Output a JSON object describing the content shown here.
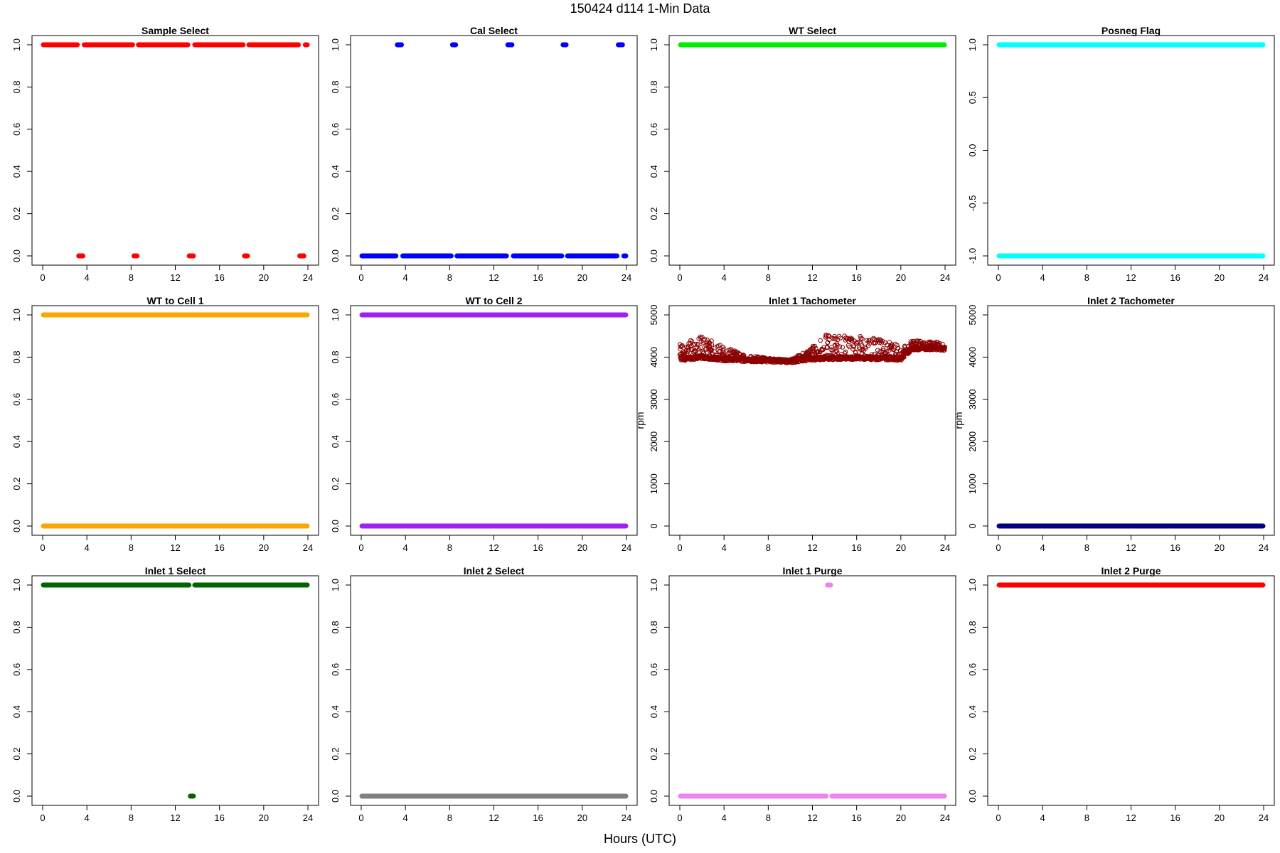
{
  "title": "150424   d114   1-Min Data",
  "xlabel": "Hours (UTC)",
  "chart_data": [
    {
      "type": "scatter",
      "title": "Sample Select",
      "color": "#ff0000",
      "ylim": [
        0,
        1
      ],
      "yticks": [
        0,
        0.2,
        0.4,
        0.6,
        0.8,
        1
      ],
      "ytick_labels": [
        "0.0",
        "0.2",
        "0.4",
        "0.6",
        "0.8",
        "1.0"
      ],
      "xlim": [
        0,
        24
      ],
      "xticks": [
        0,
        4,
        8,
        12,
        16,
        20,
        24
      ],
      "ylabel": "",
      "segments": [
        {
          "y": 1,
          "from": 0,
          "to": 3.2
        },
        {
          "y": 0,
          "from": 3.2,
          "to": 3.7
        },
        {
          "y": 1,
          "from": 3.7,
          "to": 8.2
        },
        {
          "y": 0,
          "from": 8.2,
          "to": 8.6
        },
        {
          "y": 1,
          "from": 8.6,
          "to": 13.2
        },
        {
          "y": 0,
          "from": 13.2,
          "to": 13.7
        },
        {
          "y": 1,
          "from": 13.7,
          "to": 18.2
        },
        {
          "y": 0,
          "from": 18.2,
          "to": 18.6
        },
        {
          "y": 1,
          "from": 18.6,
          "to": 23.2
        },
        {
          "y": 0,
          "from": 23.2,
          "to": 23.7
        },
        {
          "y": 1,
          "from": 23.7,
          "to": 24
        }
      ]
    },
    {
      "type": "scatter",
      "title": "Cal Select",
      "color": "#0000ff",
      "ylim": [
        0,
        1
      ],
      "yticks": [
        0,
        0.2,
        0.4,
        0.6,
        0.8,
        1
      ],
      "ytick_labels": [
        "0.0",
        "0.2",
        "0.4",
        "0.6",
        "0.8",
        "1.0"
      ],
      "xlim": [
        0,
        24
      ],
      "xticks": [
        0,
        4,
        8,
        12,
        16,
        20,
        24
      ],
      "ylabel": "",
      "segments": [
        {
          "y": 0,
          "from": 0,
          "to": 3.2
        },
        {
          "y": 1,
          "from": 3.2,
          "to": 3.7
        },
        {
          "y": 0,
          "from": 3.7,
          "to": 8.2
        },
        {
          "y": 1,
          "from": 8.2,
          "to": 8.6
        },
        {
          "y": 0,
          "from": 8.6,
          "to": 13.2
        },
        {
          "y": 1,
          "from": 13.2,
          "to": 13.7
        },
        {
          "y": 0,
          "from": 13.7,
          "to": 18.2
        },
        {
          "y": 1,
          "from": 18.2,
          "to": 18.6
        },
        {
          "y": 0,
          "from": 18.6,
          "to": 23.2
        },
        {
          "y": 1,
          "from": 23.2,
          "to": 23.7
        },
        {
          "y": 0,
          "from": 23.7,
          "to": 24
        }
      ]
    },
    {
      "type": "scatter",
      "title": "WT Select",
      "color": "#00ee00",
      "ylim": [
        0,
        1
      ],
      "yticks": [
        0,
        0.2,
        0.4,
        0.6,
        0.8,
        1
      ],
      "ytick_labels": [
        "0.0",
        "0.2",
        "0.4",
        "0.6",
        "0.8",
        "1.0"
      ],
      "xlim": [
        0,
        24
      ],
      "xticks": [
        0,
        4,
        8,
        12,
        16,
        20,
        24
      ],
      "ylabel": "",
      "segments": [
        {
          "y": 1,
          "from": 0,
          "to": 24
        }
      ]
    },
    {
      "type": "scatter",
      "title": "Posneg Flag",
      "color": "#00ffff",
      "ylim": [
        -1,
        1
      ],
      "yticks": [
        -1,
        -0.5,
        0,
        0.5,
        1
      ],
      "ytick_labels": [
        "-1.0",
        "-0.5",
        "0.0",
        "0.5",
        "1.0"
      ],
      "xlim": [
        0,
        24
      ],
      "xticks": [
        0,
        4,
        8,
        12,
        16,
        20,
        24
      ],
      "ylabel": "",
      "segments": [
        {
          "y": 1,
          "from": 0,
          "to": 24
        },
        {
          "y": -1,
          "from": 0,
          "to": 24
        }
      ]
    },
    {
      "type": "scatter",
      "title": "WT to Cell 1",
      "color": "#ffa500",
      "ylim": [
        0,
        1
      ],
      "yticks": [
        0,
        0.2,
        0.4,
        0.6,
        0.8,
        1
      ],
      "ytick_labels": [
        "0.0",
        "0.2",
        "0.4",
        "0.6",
        "0.8",
        "1.0"
      ],
      "xlim": [
        0,
        24
      ],
      "xticks": [
        0,
        4,
        8,
        12,
        16,
        20,
        24
      ],
      "ylabel": "",
      "segments": [
        {
          "y": 1,
          "from": 0,
          "to": 24
        },
        {
          "y": 0,
          "from": 0,
          "to": 24
        }
      ]
    },
    {
      "type": "scatter",
      "title": "WT to Cell 2",
      "color": "#a020f0",
      "ylim": [
        0,
        1
      ],
      "yticks": [
        0,
        0.2,
        0.4,
        0.6,
        0.8,
        1
      ],
      "ytick_labels": [
        "0.0",
        "0.2",
        "0.4",
        "0.6",
        "0.8",
        "1.0"
      ],
      "xlim": [
        0,
        24
      ],
      "xticks": [
        0,
        4,
        8,
        12,
        16,
        20,
        24
      ],
      "ylabel": "",
      "segments": [
        {
          "y": 1,
          "from": 0,
          "to": 24
        },
        {
          "y": 0,
          "from": 0,
          "to": 24
        }
      ]
    },
    {
      "type": "scatter",
      "title": "Inlet 1 Tachometer",
      "color": "#8b0000",
      "ylim": [
        0,
        5000
      ],
      "yticks": [
        0,
        1000,
        2000,
        3000,
        4000,
        5000
      ],
      "ytick_labels": [
        "0",
        "1000",
        "2000",
        "3000",
        "4000",
        "5000"
      ],
      "xlim": [
        0,
        24
      ],
      "xticks": [
        0,
        4,
        8,
        12,
        16,
        20,
        24
      ],
      "ylabel": "rpm",
      "open_points": true,
      "profile": [
        {
          "x": 0,
          "base": 3950,
          "spread": 350
        },
        {
          "x": 2,
          "base": 4000,
          "spread": 500
        },
        {
          "x": 4,
          "base": 3950,
          "spread": 300
        },
        {
          "x": 6,
          "base": 3930,
          "spread": 120
        },
        {
          "x": 8,
          "base": 3920,
          "spread": 60
        },
        {
          "x": 10,
          "base": 3900,
          "spread": 40
        },
        {
          "x": 11.5,
          "base": 3950,
          "spread": 200
        },
        {
          "x": 13,
          "base": 3980,
          "spread": 550
        },
        {
          "x": 16,
          "base": 3980,
          "spread": 550
        },
        {
          "x": 19,
          "base": 3970,
          "spread": 400
        },
        {
          "x": 20,
          "base": 3950,
          "spread": 300
        },
        {
          "x": 21,
          "base": 4200,
          "spread": 200
        },
        {
          "x": 24,
          "base": 4200,
          "spread": 150
        }
      ]
    },
    {
      "type": "scatter",
      "title": "Inlet 2 Tachometer",
      "color": "#000080",
      "ylim": [
        0,
        5000
      ],
      "yticks": [
        0,
        1000,
        2000,
        3000,
        4000,
        5000
      ],
      "ytick_labels": [
        "0",
        "1000",
        "2000",
        "3000",
        "4000",
        "5000"
      ],
      "xlim": [
        0,
        24
      ],
      "xticks": [
        0,
        4,
        8,
        12,
        16,
        20,
        24
      ],
      "ylabel": "rpm",
      "segments": [
        {
          "y": 0,
          "from": 0,
          "to": 24
        }
      ]
    },
    {
      "type": "scatter",
      "title": "Inlet 1 Select",
      "color": "#006400",
      "ylim": [
        0,
        1
      ],
      "yticks": [
        0,
        0.2,
        0.4,
        0.6,
        0.8,
        1
      ],
      "ytick_labels": [
        "0.0",
        "0.2",
        "0.4",
        "0.6",
        "0.8",
        "1.0"
      ],
      "xlim": [
        0,
        24
      ],
      "xticks": [
        0,
        4,
        8,
        12,
        16,
        20,
        24
      ],
      "ylabel": "",
      "segments": [
        {
          "y": 1,
          "from": 0,
          "to": 13.3
        },
        {
          "y": 0,
          "from": 13.3,
          "to": 13.7
        },
        {
          "y": 1,
          "from": 13.7,
          "to": 24
        }
      ]
    },
    {
      "type": "scatter",
      "title": "Inlet 2 Select",
      "color": "#808080",
      "ylim": [
        0,
        1
      ],
      "yticks": [
        0,
        0.2,
        0.4,
        0.6,
        0.8,
        1
      ],
      "ytick_labels": [
        "0.0",
        "0.2",
        "0.4",
        "0.6",
        "0.8",
        "1.0"
      ],
      "xlim": [
        0,
        24
      ],
      "xticks": [
        0,
        4,
        8,
        12,
        16,
        20,
        24
      ],
      "ylabel": "",
      "segments": [
        {
          "y": 0,
          "from": 0,
          "to": 24
        }
      ]
    },
    {
      "type": "scatter",
      "title": "Inlet 1 Purge",
      "color": "#ee82ee",
      "ylim": [
        0,
        1
      ],
      "yticks": [
        0,
        0.2,
        0.4,
        0.6,
        0.8,
        1
      ],
      "ytick_labels": [
        "0.0",
        "0.2",
        "0.4",
        "0.6",
        "0.8",
        "1.0"
      ],
      "xlim": [
        0,
        24
      ],
      "xticks": [
        0,
        4,
        8,
        12,
        16,
        20,
        24
      ],
      "ylabel": "",
      "segments": [
        {
          "y": 0,
          "from": 0,
          "to": 13.3
        },
        {
          "y": 1,
          "from": 13.3,
          "to": 13.7
        },
        {
          "y": 0,
          "from": 13.7,
          "to": 24
        }
      ]
    },
    {
      "type": "scatter",
      "title": "Inlet 2 Purge",
      "color": "#ff0000",
      "ylim": [
        0,
        1
      ],
      "yticks": [
        0,
        0.2,
        0.4,
        0.6,
        0.8,
        1
      ],
      "ytick_labels": [
        "0.0",
        "0.2",
        "0.4",
        "0.6",
        "0.8",
        "1.0"
      ],
      "xlim": [
        0,
        24
      ],
      "xticks": [
        0,
        4,
        8,
        12,
        16,
        20,
        24
      ],
      "ylabel": "",
      "segments": [
        {
          "y": 1,
          "from": 0,
          "to": 24
        }
      ]
    }
  ]
}
